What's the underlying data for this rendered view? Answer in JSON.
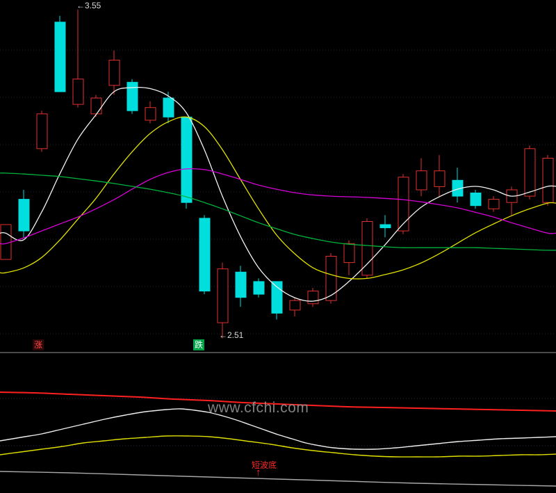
{
  "meta": {
    "watermark": "www.cfchi.com"
  },
  "colors": {
    "background": "#000000",
    "up": "#e33030",
    "down": "#00dede",
    "ma_white": "#f2f2f2",
    "ma_yellow": "#e2e200",
    "ma_magenta": "#d800d8",
    "ma_green": "#00b43c",
    "grid": "#262640",
    "divider": "#4a4a4a",
    "annotation_text": "#d8d8d8",
    "ind_red": "#ff2020",
    "ind_white": "#eeeeee",
    "ind_yellow": "#dede00",
    "ind_gray": "#a8a8a8",
    "signal_red": "#ff2a2a",
    "watermark_gray": "#969696",
    "rise_fg": "#ff4a4a",
    "fall_bg": "#00a446"
  },
  "main_chart": {
    "annotations": {
      "high": "←3.55",
      "low": "←2.51"
    },
    "markers": {
      "rise": "涨",
      "fall": "跌"
    }
  },
  "indicator_panel": {
    "signal_label": "短波底",
    "signal_arrow": "↑"
  },
  "chart_data": {
    "type": "candlestick",
    "title": "",
    "legend": "none",
    "grid": "dotted-horizontal",
    "price_axis": {
      "visible_high": 3.58,
      "visible_low": 2.47,
      "annotated_high": 3.55,
      "annotated_low": 2.51
    },
    "candles": [
      {
        "o": 2.76,
        "h": 2.87,
        "l": 2.76,
        "c": 2.87
      },
      {
        "o": 2.95,
        "h": 2.98,
        "l": 2.83,
        "c": 2.85
      },
      {
        "o": 3.11,
        "h": 3.23,
        "l": 3.1,
        "c": 3.22
      },
      {
        "o": 3.51,
        "h": 3.53,
        "l": 3.29,
        "c": 3.29
      },
      {
        "o": 3.25,
        "h": 3.55,
        "l": 3.24,
        "c": 3.33
      },
      {
        "o": 3.22,
        "h": 3.28,
        "l": 3.21,
        "c": 3.27
      },
      {
        "o": 3.31,
        "h": 3.42,
        "l": 3.28,
        "c": 3.39
      },
      {
        "o": 3.32,
        "h": 3.33,
        "l": 3.22,
        "c": 3.23
      },
      {
        "o": 3.2,
        "h": 3.26,
        "l": 3.19,
        "c": 3.24
      },
      {
        "o": 3.27,
        "h": 3.29,
        "l": 3.19,
        "c": 3.21
      },
      {
        "o": 3.21,
        "h": 3.21,
        "l": 2.92,
        "c": 2.94
      },
      {
        "o": 2.89,
        "h": 2.9,
        "l": 2.65,
        "c": 2.66
      },
      {
        "o": 2.56,
        "h": 2.75,
        "l": 2.51,
        "c": 2.73
      },
      {
        "o": 2.72,
        "h": 2.74,
        "l": 2.61,
        "c": 2.64
      },
      {
        "o": 2.69,
        "h": 2.7,
        "l": 2.64,
        "c": 2.65
      },
      {
        "o": 2.69,
        "h": 2.69,
        "l": 2.57,
        "c": 2.59
      },
      {
        "o": 2.6,
        "h": 2.64,
        "l": 2.58,
        "c": 2.63
      },
      {
        "o": 2.62,
        "h": 2.67,
        "l": 2.61,
        "c": 2.66
      },
      {
        "o": 2.63,
        "h": 2.78,
        "l": 2.62,
        "c": 2.77
      },
      {
        "o": 2.75,
        "h": 2.82,
        "l": 2.71,
        "c": 2.81
      },
      {
        "o": 2.71,
        "h": 2.89,
        "l": 2.7,
        "c": 2.88
      },
      {
        "o": 2.87,
        "h": 2.9,
        "l": 2.83,
        "c": 2.86
      },
      {
        "o": 2.85,
        "h": 3.03,
        "l": 2.84,
        "c": 3.02
      },
      {
        "o": 2.98,
        "h": 3.08,
        "l": 2.96,
        "c": 3.04
      },
      {
        "o": 2.99,
        "h": 3.09,
        "l": 2.96,
        "c": 3.04
      },
      {
        "o": 3.01,
        "h": 3.05,
        "l": 2.94,
        "c": 2.96
      },
      {
        "o": 2.97,
        "h": 2.98,
        "l": 2.92,
        "c": 2.93
      },
      {
        "o": 2.92,
        "h": 2.96,
        "l": 2.91,
        "c": 2.95
      },
      {
        "o": 2.94,
        "h": 2.99,
        "l": 2.9,
        "c": 2.98
      },
      {
        "o": 2.96,
        "h": 3.12,
        "l": 2.95,
        "c": 3.11
      },
      {
        "o": 2.94,
        "h": 3.09,
        "l": 2.93,
        "c": 3.08
      }
    ],
    "overlays": [
      {
        "name": "ma-white",
        "color_key": "ma_white",
        "values": [
          2.843,
          2.822,
          2.91,
          3.03,
          3.14,
          3.217,
          3.29,
          3.303,
          3.3,
          3.277,
          3.224,
          3.107,
          2.96,
          2.833,
          2.734,
          2.674,
          2.639,
          2.628,
          2.646,
          2.69,
          2.745,
          2.806,
          2.872,
          2.925,
          2.958,
          2.982,
          2.991,
          2.98,
          2.96,
          2.973,
          2.991
        ]
      },
      {
        "name": "ma-yellow",
        "color_key": "ma_yellow",
        "values": [
          2.718,
          2.733,
          2.766,
          2.821,
          2.887,
          2.953,
          3.03,
          3.1,
          3.158,
          3.195,
          3.21,
          3.18,
          3.107,
          3.013,
          2.92,
          2.837,
          2.778,
          2.734,
          2.712,
          2.7,
          2.7,
          2.712,
          2.727,
          2.749,
          2.778,
          2.811,
          2.844,
          2.872,
          2.898,
          2.92,
          2.938
        ]
      },
      {
        "name": "ma-magenta",
        "color_key": "ma_magenta",
        "values": [
          2.81,
          2.828,
          2.85,
          2.872,
          2.894,
          2.92,
          2.949,
          2.982,
          3.013,
          3.035,
          3.046,
          3.044,
          3.03,
          3.013,
          2.995,
          2.982,
          2.971,
          2.964,
          2.96,
          2.958,
          2.956,
          2.953,
          2.949,
          2.942,
          2.933,
          2.923,
          2.909,
          2.894,
          2.876,
          2.859,
          2.843
        ]
      },
      {
        "name": "ma-green",
        "color_key": "ma_green",
        "values": [
          3.033,
          3.03,
          3.026,
          3.022,
          3.015,
          3.008,
          3.0,
          2.991,
          2.982,
          2.971,
          2.958,
          2.94,
          2.92,
          2.898,
          2.876,
          2.857,
          2.839,
          2.826,
          2.815,
          2.808,
          2.804,
          2.8,
          2.797,
          2.797,
          2.797,
          2.797,
          2.797,
          2.795,
          2.793,
          2.791,
          2.789
        ]
      }
    ],
    "indicator": {
      "type": "line",
      "note": "unlabeled oscillator lines, points are [x, y-px] in panel space",
      "lines": [
        {
          "name": "upper-red",
          "color_key": "ind_red",
          "w": 2,
          "points": [
            [
              0,
              56
            ],
            [
              50,
              57
            ],
            [
              100,
              59
            ],
            [
              150,
              61
            ],
            [
              200,
              63
            ],
            [
              250,
              66
            ],
            [
              300,
              68
            ],
            [
              350,
              71
            ],
            [
              400,
              73
            ],
            [
              450,
              75
            ],
            [
              500,
              77
            ],
            [
              550,
              78
            ],
            [
              600,
              79
            ],
            [
              650,
              80
            ],
            [
              700,
              81
            ],
            [
              750,
              82
            ],
            [
              800,
              83
            ]
          ]
        },
        {
          "name": "white-wave",
          "color_key": "ind_white",
          "w": 1.4,
          "points": [
            [
              0,
              126
            ],
            [
              30,
              121
            ],
            [
              60,
              116
            ],
            [
              90,
              109
            ],
            [
              120,
              102
            ],
            [
              150,
              95
            ],
            [
              180,
              89
            ],
            [
              210,
              84
            ],
            [
              240,
              81
            ],
            [
              260,
              80
            ],
            [
              280,
              82
            ],
            [
              300,
              85
            ],
            [
              320,
              90
            ],
            [
              340,
              96
            ],
            [
              360,
              103
            ],
            [
              380,
              110
            ],
            [
              400,
              117
            ],
            [
              420,
              123
            ],
            [
              440,
              129
            ],
            [
              460,
              133
            ],
            [
              480,
              136
            ],
            [
              510,
              138
            ],
            [
              540,
              138
            ],
            [
              570,
              136
            ],
            [
              600,
              133
            ],
            [
              630,
              130
            ],
            [
              660,
              127
            ],
            [
              690,
              125
            ],
            [
              720,
              123
            ],
            [
              750,
              122
            ],
            [
              775,
              121
            ],
            [
              800,
              120
            ]
          ]
        },
        {
          "name": "yellow-wave",
          "color_key": "ind_yellow",
          "w": 1.4,
          "points": [
            [
              0,
              146
            ],
            [
              30,
              142
            ],
            [
              60,
              138
            ],
            [
              90,
              134
            ],
            [
              120,
              129
            ],
            [
              150,
              126
            ],
            [
              180,
              123
            ],
            [
              210,
              121
            ],
            [
              240,
              119
            ],
            [
              270,
              119
            ],
            [
              300,
              120
            ],
            [
              330,
              123
            ],
            [
              360,
              127
            ],
            [
              390,
              131
            ],
            [
              420,
              136
            ],
            [
              450,
              140
            ],
            [
              480,
              143
            ],
            [
              510,
              146
            ],
            [
              540,
              148
            ],
            [
              570,
              149
            ],
            [
              600,
              149
            ],
            [
              630,
              149
            ],
            [
              660,
              148
            ],
            [
              690,
              148
            ],
            [
              720,
              147
            ],
            [
              750,
              146
            ],
            [
              775,
              146
            ],
            [
              800,
              145
            ]
          ]
        },
        {
          "name": "lower-gray",
          "color_key": "ind_gray",
          "w": 1.4,
          "points": [
            [
              0,
              170
            ],
            [
              100,
              172
            ],
            [
              200,
              175
            ],
            [
              300,
              178
            ],
            [
              400,
              181
            ],
            [
              500,
              184
            ],
            [
              600,
              187
            ],
            [
              700,
              189
            ],
            [
              800,
              191
            ]
          ]
        }
      ]
    }
  }
}
